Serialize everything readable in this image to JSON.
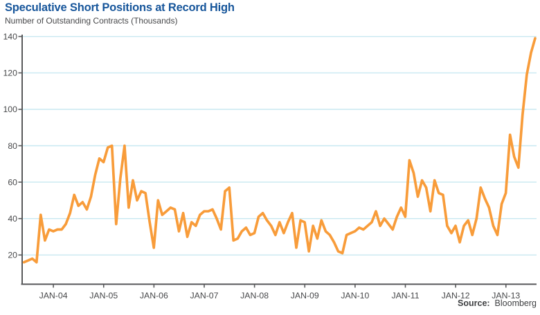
{
  "chart_data": {
    "type": "line",
    "title": "Speculative Short Positions at Record High",
    "subtitle": "Number of Outstanding Contracts (Thousands)",
    "source_label": "Source:",
    "source_value": "Bloomberg",
    "x_tick_labels": [
      "JAN-04",
      "JAN-05",
      "JAN-06",
      "JAN-07",
      "JAN-08",
      "JAN-09",
      "JAN-10",
      "JAN-11",
      "JAN-12",
      "JAN-13"
    ],
    "y_ticks": [
      20,
      40,
      60,
      80,
      100,
      120,
      140
    ],
    "ylim": [
      4,
      140
    ],
    "grid": "horizontal-only",
    "legend": "none",
    "colors": {
      "line": "#F89C3A",
      "grid": "#C8E8F1",
      "axis": "#58595B",
      "title": "#17569B",
      "text": "#47484A"
    },
    "series": [
      {
        "name": "speculative-short-positions-thousands",
        "frequency": "monthly",
        "start_month": "JUN-03",
        "end_month": "AUG-13",
        "values": [
          16,
          17,
          18,
          16,
          42,
          28,
          34,
          33,
          34,
          34,
          37,
          43,
          53,
          47,
          49,
          45,
          52,
          64,
          73,
          71,
          79,
          80,
          37,
          62,
          80,
          46,
          61,
          50,
          55,
          54,
          38,
          24,
          50,
          42,
          44,
          46,
          45,
          33,
          43,
          30,
          38,
          36,
          42,
          44,
          44,
          45,
          40,
          34,
          55,
          57,
          28,
          29,
          33,
          35,
          31,
          32,
          41,
          43,
          39,
          36,
          31,
          38,
          32,
          38,
          43,
          24,
          39,
          38,
          22,
          36,
          29,
          39,
          33,
          31,
          27,
          22,
          21,
          31,
          32,
          33,
          35,
          34,
          36,
          38,
          44,
          36,
          40,
          37,
          34,
          41,
          46,
          41,
          72,
          65,
          52,
          61,
          57,
          44,
          61,
          54,
          53,
          36,
          32,
          36,
          27,
          36,
          39,
          31,
          40,
          57,
          51,
          46,
          36,
          31,
          48,
          54,
          86,
          74,
          68,
          97,
          119,
          131,
          139
        ]
      }
    ]
  }
}
